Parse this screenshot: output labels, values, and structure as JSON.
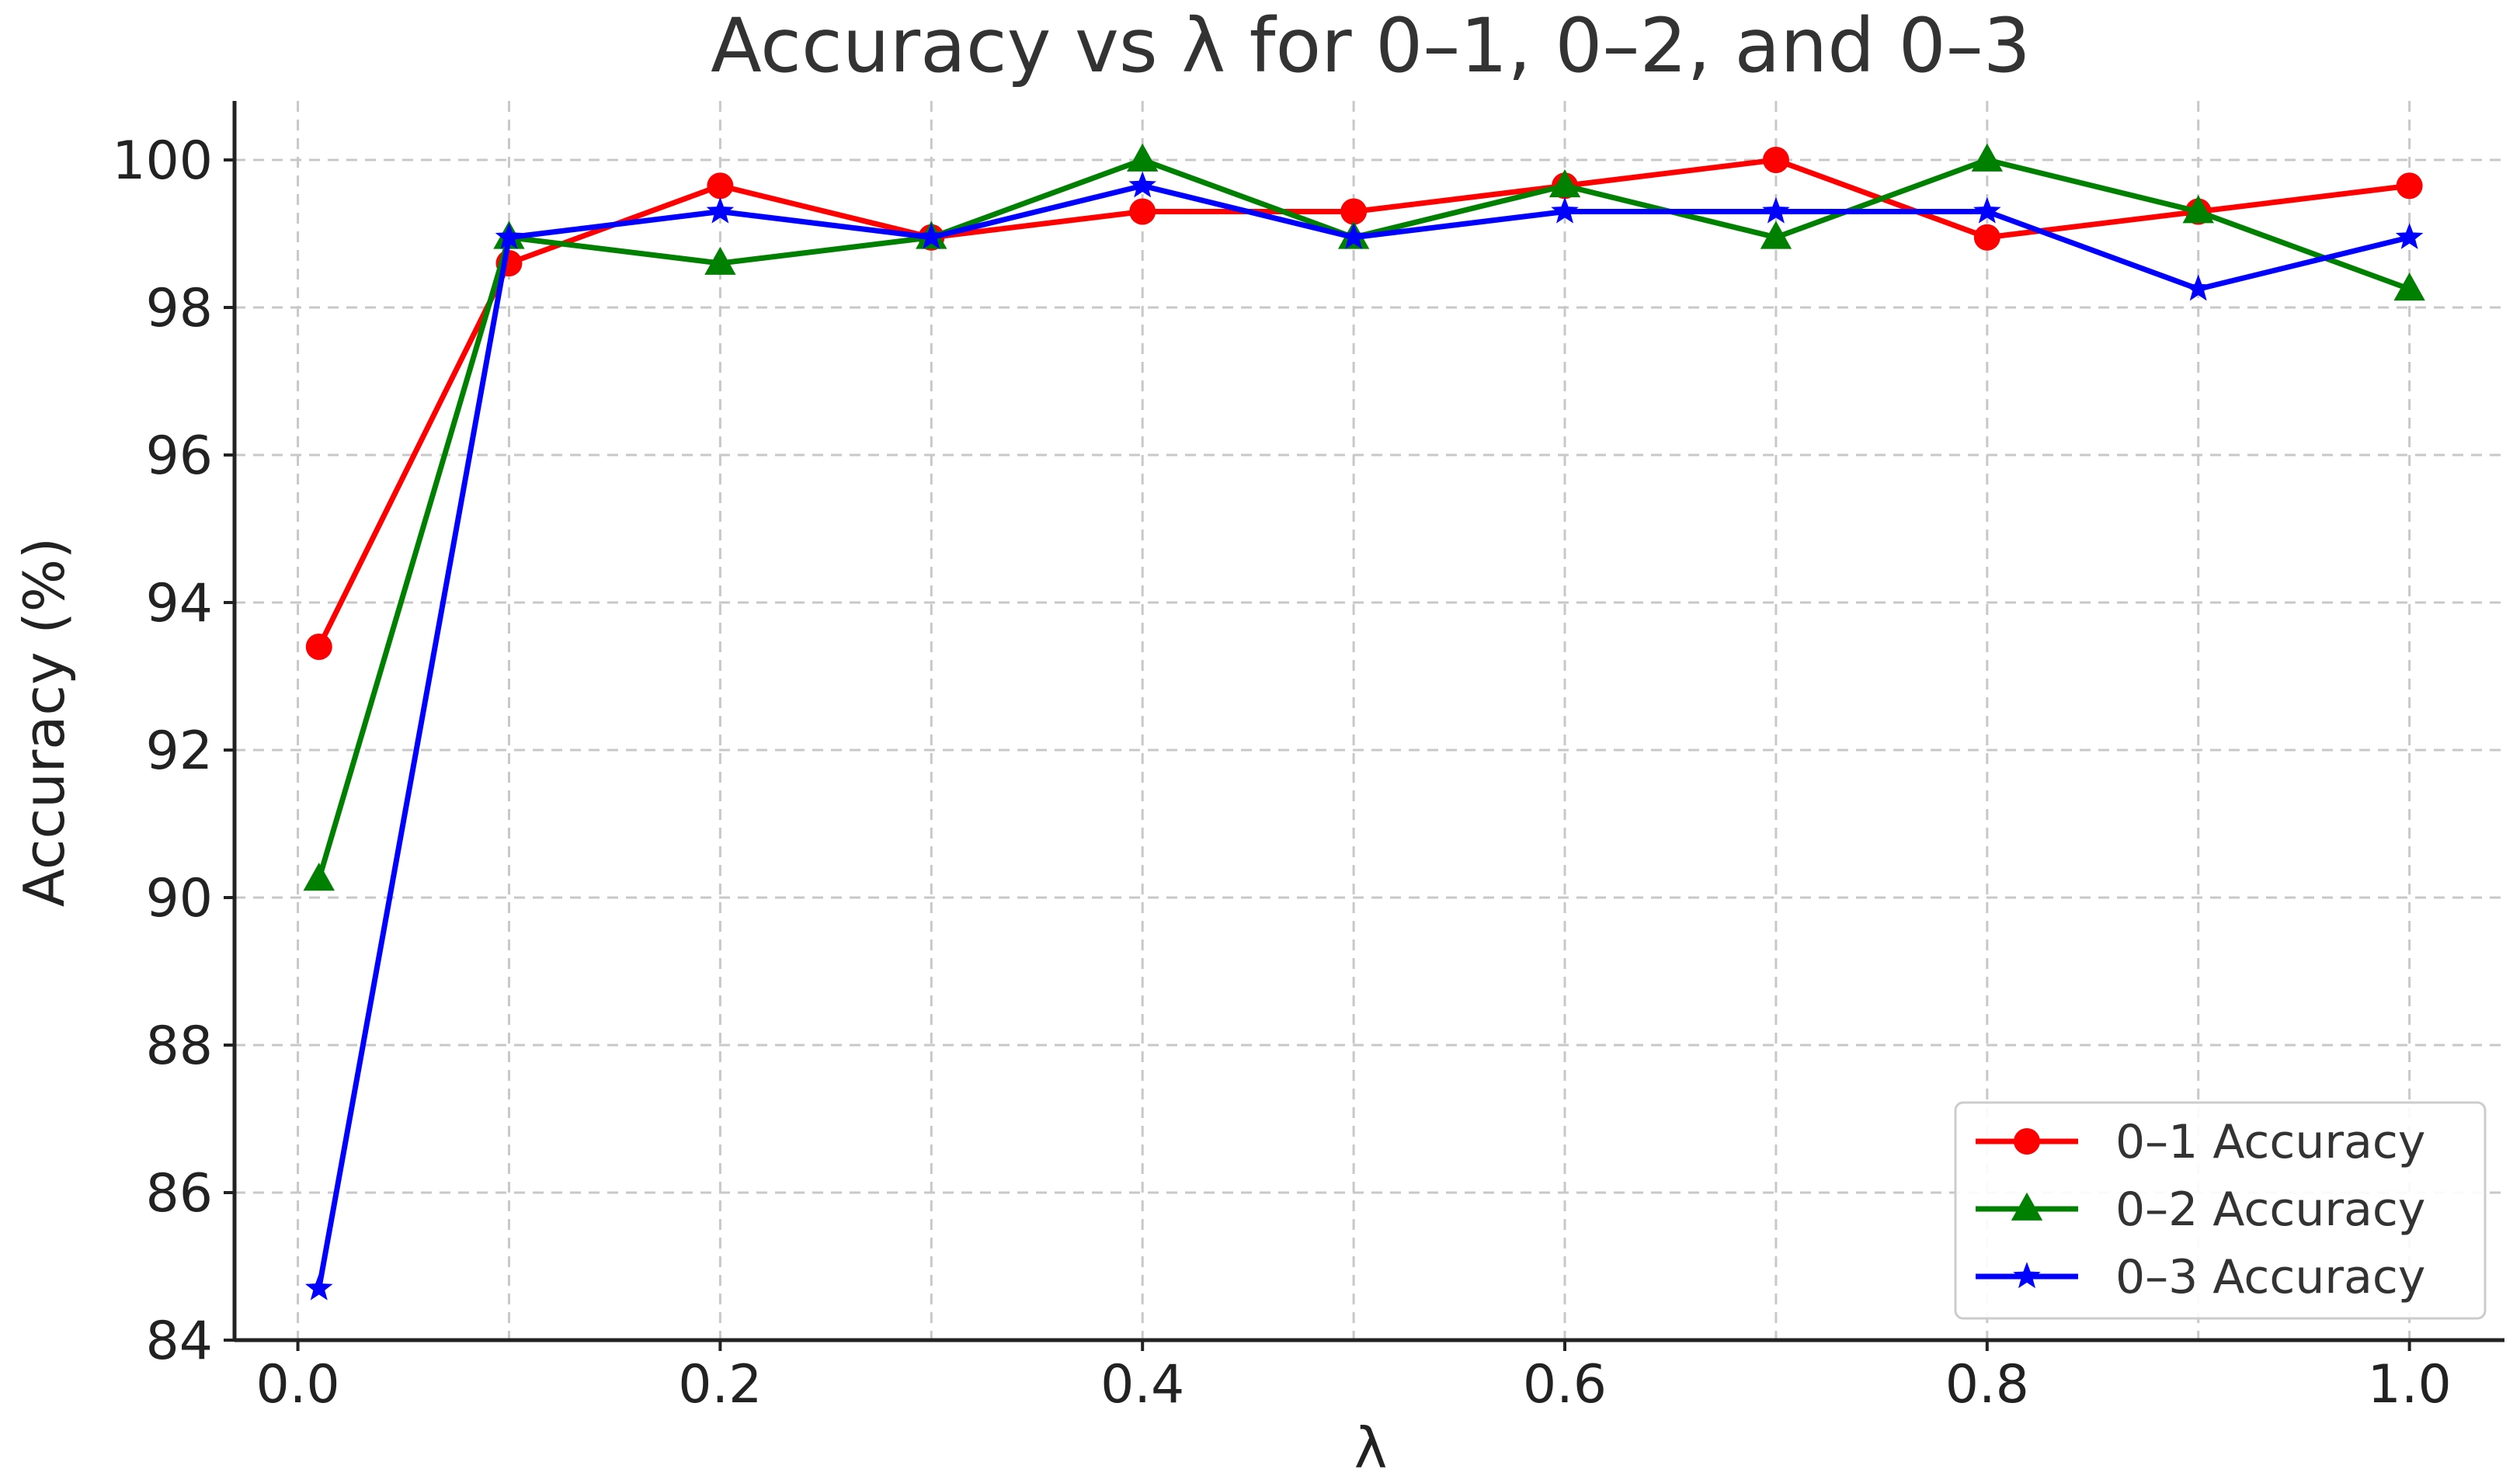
{
  "chart_data": {
    "type": "line",
    "title": "Accuracy vs λ for 0–1, 0–2, and 0–3",
    "xlabel": "λ",
    "ylabel": "Accuracy (%)",
    "xlim": [
      -0.03,
      1.045
    ],
    "ylim": [
      84,
      100.8
    ],
    "grid": true,
    "legend_position": "lower-right",
    "x": [
      0.01,
      0.1,
      0.2,
      0.3,
      0.4,
      0.5,
      0.6,
      0.7,
      0.8,
      0.9,
      1.0
    ],
    "xticks": [
      {
        "value": 0.0,
        "label": "0.0"
      },
      {
        "value": 0.2,
        "label": "0.2"
      },
      {
        "value": 0.4,
        "label": "0.4"
      },
      {
        "value": 0.6,
        "label": "0.6"
      },
      {
        "value": 0.8,
        "label": "0.8"
      },
      {
        "value": 1.0,
        "label": "1.0"
      }
    ],
    "yticks": [
      {
        "value": 84,
        "label": "84"
      },
      {
        "value": 86,
        "label": "86"
      },
      {
        "value": 88,
        "label": "88"
      },
      {
        "value": 90,
        "label": "90"
      },
      {
        "value": 92,
        "label": "92"
      },
      {
        "value": 94,
        "label": "94"
      },
      {
        "value": 96,
        "label": "96"
      },
      {
        "value": 98,
        "label": "98"
      },
      {
        "value": 100,
        "label": "100"
      }
    ],
    "xgrid": [
      0.0,
      0.1,
      0.2,
      0.3,
      0.4,
      0.5,
      0.6,
      0.7,
      0.8,
      0.9,
      1.0
    ],
    "series": [
      {
        "name": "0–1 Accuracy",
        "color": "#ff0000",
        "marker": "circle",
        "values": [
          93.4,
          98.6,
          99.65,
          98.95,
          99.3,
          99.3,
          99.65,
          100.0,
          98.95,
          99.3,
          99.65
        ]
      },
      {
        "name": "0–2 Accuracy",
        "color": "#008000",
        "marker": "triangle",
        "values": [
          90.25,
          98.95,
          98.6,
          98.95,
          100.0,
          98.95,
          99.65,
          98.95,
          100.0,
          99.3,
          98.25
        ]
      },
      {
        "name": "0–3 Accuracy",
        "color": "#0000ff",
        "marker": "star",
        "values": [
          84.7,
          98.95,
          99.3,
          98.95,
          99.65,
          98.95,
          99.3,
          99.3,
          99.3,
          98.25,
          98.95
        ]
      }
    ]
  }
}
